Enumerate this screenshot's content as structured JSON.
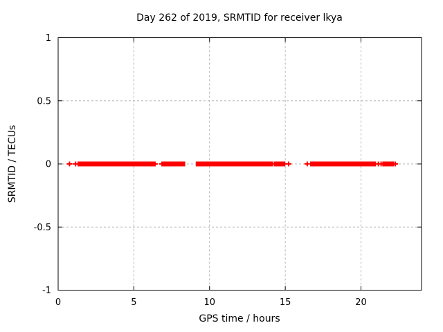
{
  "chart_data": {
    "type": "scatter",
    "title": "Day 262 of 2019, SRMTID for receiver lkya",
    "xlabel": "GPS time / hours",
    "ylabel": "SRMTID / TECUs",
    "xlim": [
      0,
      24
    ],
    "ylim": [
      -1,
      1
    ],
    "xtick_values": [
      0,
      5,
      10,
      15,
      20
    ],
    "xtick_labels": [
      "0",
      "5",
      "10",
      "15",
      "20"
    ],
    "ytick_values": [
      -1,
      -0.5,
      0,
      0.5,
      1
    ],
    "ytick_labels": [
      "-1",
      "-0.5",
      "0",
      "0.5",
      "1"
    ],
    "grid": "dashed",
    "grid_color": "#b3b3b3",
    "border_color": "#000000",
    "marker": "plus",
    "marker_color": "#ff0000",
    "series": [
      {
        "name": "SRMTID",
        "y_value": 0,
        "dense_segments_hours": [
          [
            1.37,
            5.3
          ],
          [
            5.44,
            5.7
          ],
          [
            5.79,
            6.28
          ],
          [
            6.93,
            7.16
          ],
          [
            7.28,
            7.62
          ],
          [
            8.0,
            8.3
          ],
          [
            9.18,
            14.02
          ],
          [
            14.4,
            14.85
          ],
          [
            16.73,
            20.85
          ],
          [
            21.5,
            22.1
          ]
        ],
        "isolated_points_hours": [
          0.75,
          1.15,
          6.4,
          6.86,
          7.7,
          7.76,
          7.82,
          7.88,
          14.15,
          14.29,
          14.96,
          15.22,
          16.45,
          20.95,
          21.15,
          21.33,
          22.27
        ]
      }
    ]
  }
}
